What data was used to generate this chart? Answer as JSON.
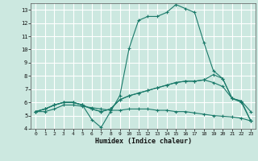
{
  "xlabel": "Humidex (Indice chaleur)",
  "bg_color": "#cce8e0",
  "grid_color": "#b0d8d0",
  "line_color": "#1a7a6a",
  "xlim": [
    -0.5,
    23.5
  ],
  "ylim": [
    4,
    13.5
  ],
  "xticks": [
    0,
    1,
    2,
    3,
    4,
    5,
    6,
    7,
    8,
    9,
    10,
    11,
    12,
    13,
    14,
    15,
    16,
    17,
    18,
    19,
    20,
    21,
    22,
    23
  ],
  "yticks": [
    4,
    5,
    6,
    7,
    8,
    9,
    10,
    11,
    12,
    13
  ],
  "line1_x": [
    0,
    1,
    2,
    3,
    4,
    5,
    6,
    7,
    8,
    9,
    10,
    11,
    12,
    13,
    14,
    15,
    16,
    17,
    18,
    19,
    20,
    21,
    22,
    23
  ],
  "line1_y": [
    5.3,
    5.5,
    5.8,
    6.0,
    6.0,
    5.8,
    4.7,
    4.1,
    5.3,
    6.5,
    10.1,
    12.2,
    12.5,
    12.5,
    12.8,
    13.4,
    13.1,
    12.8,
    10.5,
    8.4,
    7.8,
    6.3,
    6.1,
    5.3
  ],
  "line2_x": [
    0,
    1,
    2,
    3,
    4,
    5,
    6,
    7,
    8,
    9,
    10,
    11,
    12,
    13,
    14,
    15,
    16,
    17,
    18,
    19,
    20,
    21,
    22,
    23
  ],
  "line2_y": [
    5.3,
    5.5,
    5.8,
    6.0,
    6.0,
    5.8,
    5.5,
    5.3,
    5.5,
    6.2,
    6.5,
    6.7,
    6.9,
    7.1,
    7.3,
    7.5,
    7.6,
    7.6,
    7.7,
    8.1,
    7.8,
    6.3,
    6.1,
    4.6
  ],
  "line3_x": [
    0,
    1,
    2,
    3,
    4,
    5,
    6,
    7,
    8,
    9,
    10,
    11,
    12,
    13,
    14,
    15,
    16,
    17,
    18,
    19,
    20,
    21,
    22,
    23
  ],
  "line3_y": [
    5.3,
    5.5,
    5.8,
    6.0,
    6.0,
    5.8,
    5.5,
    5.3,
    5.5,
    6.2,
    6.5,
    6.7,
    6.9,
    7.1,
    7.3,
    7.5,
    7.6,
    7.6,
    7.7,
    7.5,
    7.2,
    6.3,
    6.0,
    4.6
  ],
  "line4_x": [
    0,
    1,
    2,
    3,
    4,
    5,
    6,
    7,
    8,
    9,
    10,
    11,
    12,
    13,
    14,
    15,
    16,
    17,
    18,
    19,
    20,
    21,
    22,
    23
  ],
  "line4_y": [
    5.3,
    5.3,
    5.5,
    5.8,
    5.8,
    5.7,
    5.6,
    5.5,
    5.4,
    5.4,
    5.5,
    5.5,
    5.5,
    5.4,
    5.4,
    5.3,
    5.3,
    5.2,
    5.1,
    5.0,
    4.95,
    4.9,
    4.8,
    4.6
  ]
}
